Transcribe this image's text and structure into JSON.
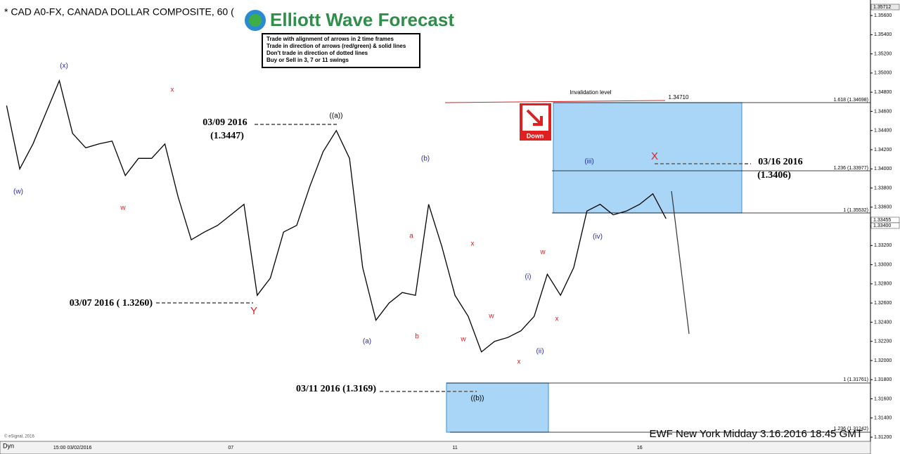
{
  "header": {
    "title": "* CAD A0-FX, CANADA DOLLAR COMPOSITE, 60 (",
    "logo": "Elliott Wave Forecast",
    "rules": [
      "Trade with alignment of arrows in 2 time frames",
      "Trade in direction of arrows (red/green) & solid lines",
      "Don't trade in direction of dotted lines",
      "Buy or Sell in 3, 7 or 11 swings"
    ]
  },
  "chart_data": {
    "type": "line",
    "color": "#000000",
    "categories": [
      null,
      null,
      null,
      null,
      null,
      "15:00 03/02/2016",
      null,
      null,
      null,
      null,
      null,
      null,
      null,
      null,
      null,
      null,
      null,
      "07",
      null,
      null,
      null,
      null,
      null,
      null,
      null,
      null,
      null,
      null,
      null,
      null,
      null,
      null,
      null,
      null,
      "11",
      null,
      null,
      null,
      null,
      null,
      null,
      null,
      null,
      null,
      null,
      null,
      null,
      null,
      "16",
      null,
      null,
      null,
      null,
      null,
      null,
      null,
      null,
      null,
      null,
      null,
      null,
      null,
      null,
      null,
      null,
      null
    ],
    "values": [
      1.3466,
      1.34,
      1.3426,
      1.3459,
      1.3492,
      1.3437,
      1.3422,
      1.3426,
      1.3429,
      1.3393,
      1.3411,
      1.3411,
      1.3426,
      1.3371,
      1.3326,
      1.3334,
      1.3341,
      1.3352,
      1.3363,
      1.3268,
      1.3286,
      1.3334,
      1.3341,
      1.3382,
      1.3418,
      1.344,
      1.3411,
      1.3297,
      1.3242,
      1.326,
      1.3271,
      1.3268,
      1.3363,
      1.3319,
      1.3268,
      1.3246,
      1.3209,
      1.322,
      1.3224,
      1.3231,
      1.3246,
      1.329,
      1.3268,
      1.3297,
      1.3356,
      1.3363,
      1.3352,
      1.3356,
      1.3363,
      1.3374,
      1.3348,
      null,
      null,
      null,
      null,
      null,
      null,
      null,
      null,
      null,
      null,
      null,
      null,
      null,
      null,
      null
    ],
    "ylim": [
      1.31149,
      1.35762
    ],
    "yticks": [
      {
        "value": 1.312,
        "label": "1.31200"
      },
      {
        "value": 1.314,
        "label": "1.31400"
      },
      {
        "value": 1.316,
        "label": "1.31600"
      },
      {
        "value": 1.318,
        "label": "1.31800"
      },
      {
        "value": 1.32,
        "label": "1.32000"
      },
      {
        "value": 1.322,
        "label": "1.32200"
      },
      {
        "value": 1.324,
        "label": "1.32400"
      },
      {
        "value": 1.326,
        "label": "1.32600"
      },
      {
        "value": 1.328,
        "label": "1.32800"
      },
      {
        "value": 1.33,
        "label": "1.33000"
      },
      {
        "value": 1.332,
        "label": "1.33200"
      },
      {
        "value": 1.334,
        "label": "1.33400"
      },
      {
        "value": 1.336,
        "label": "1.33600"
      },
      {
        "value": 1.338,
        "label": "1.33800"
      },
      {
        "value": 1.34,
        "label": "1.34000"
      },
      {
        "value": 1.342,
        "label": "1.34200"
      },
      {
        "value": 1.344,
        "label": "1.34400"
      },
      {
        "value": 1.346,
        "label": "1.34600"
      },
      {
        "value": 1.348,
        "label": "1.34800"
      },
      {
        "value": 1.35,
        "label": "1.35000"
      },
      {
        "value": 1.352,
        "label": "1.35200"
      },
      {
        "value": 1.354,
        "label": "1.35400"
      },
      {
        "value": 1.356,
        "label": "1.35600"
      }
    ],
    "grid": false
  },
  "waves": [
    "(w)",
    "(x)",
    "x",
    "w",
    "((a))",
    "Y",
    "(a)",
    "a",
    "b",
    "(b)",
    "x",
    "w",
    "w",
    "((b))",
    "x",
    "(i)",
    "(ii)",
    "w",
    "x",
    "(iii)",
    "(iv)",
    "X"
  ],
  "callouts": [
    "03/09 2016",
    "(1.3447)",
    "03/07 2016 ( 1.3260)",
    "03/11 2016 (1.3169)",
    "03/16 2016",
    "(1.3406)"
  ],
  "levels": [
    "1.618 (1.34698)",
    "1.236 (1.33977)",
    "1 (1.35532)",
    "1 (1.31761)",
    "1.236 (1.31242)"
  ],
  "invalidation": "Invalidation level",
  "invalidation_price": "1.34710",
  "price_tags": [
    "1.35712",
    "1.33455",
    "1.33400"
  ],
  "signal": "Down",
  "footer": "EWF New York Midday 3.16.2016 18:45 GMT",
  "copyright": "© eSignal, 2016",
  "dyn": "Dyn"
}
